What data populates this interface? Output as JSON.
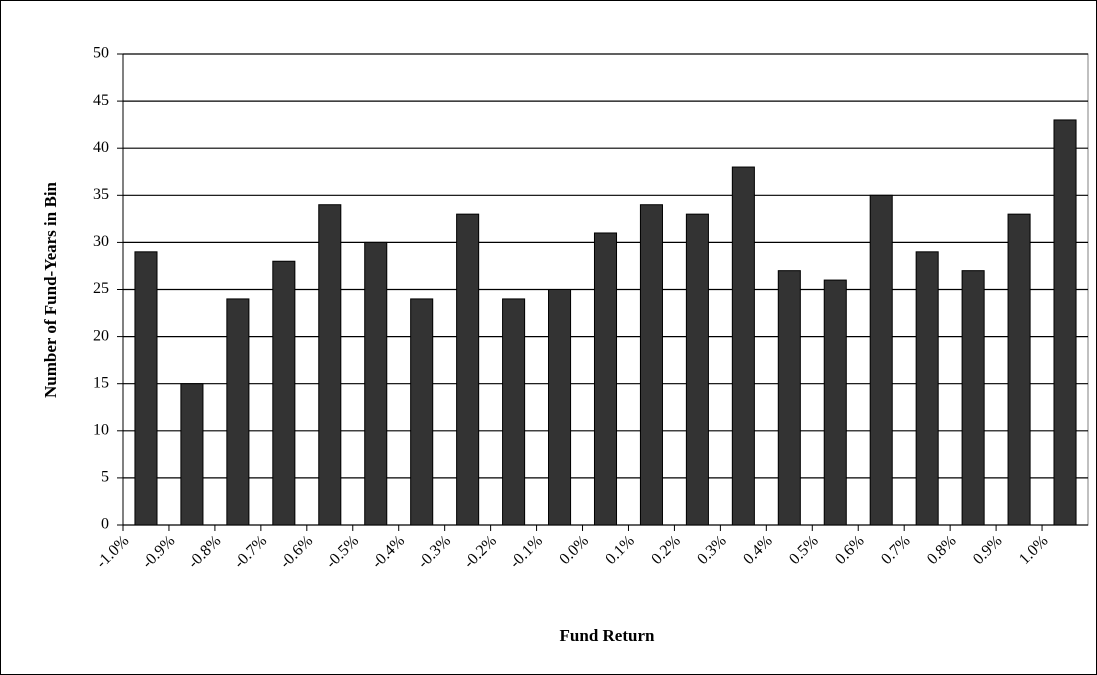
{
  "chart_data": {
    "type": "bar",
    "x_label": "Fund Return",
    "y_label": "Number of Fund-Years in Bin",
    "categories": [
      "-1.0%",
      "-0.9%",
      "-0.8%",
      "-0.7%",
      "-0.6%",
      "-0.5%",
      "-0.4%",
      "-0.3%",
      "-0.2%",
      "-0.1%",
      "0.0%",
      "0.1%",
      "0.2%",
      "0.3%",
      "0.4%",
      "0.5%",
      "0.6%",
      "0.7%",
      "0.8%",
      "0.9%",
      "1.0%"
    ],
    "values": [
      29,
      15,
      24,
      28,
      34,
      30,
      24,
      33,
      24,
      25,
      31,
      34,
      33,
      38,
      27,
      26,
      35,
      29,
      27,
      33,
      43
    ],
    "color": "#333333",
    "ylim": [
      0,
      50
    ],
    "yticks": [
      0,
      5,
      10,
      15,
      20,
      25,
      30,
      35,
      40,
      45,
      50
    ],
    "grid": true
  }
}
